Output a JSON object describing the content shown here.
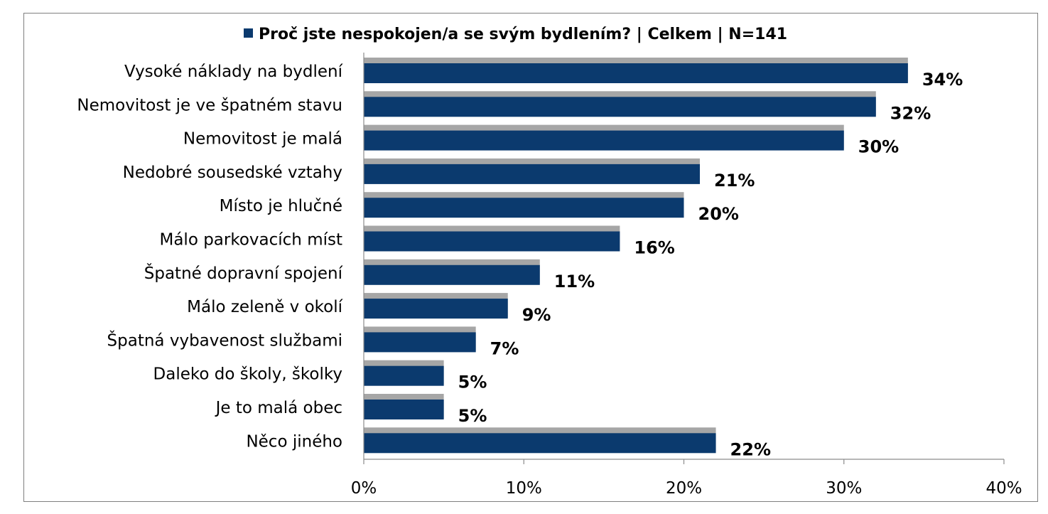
{
  "chart_data": {
    "type": "bar",
    "orientation": "horizontal",
    "title": "",
    "legend": {
      "position": "top",
      "entries": [
        {
          "name": "Proč jste nespokojen/a se svým bydlením? | Celkem | N=141",
          "color": "#0b3a6e"
        }
      ]
    },
    "categories": [
      "Vysoké náklady na bydlení",
      "Nemovitost je ve špatném stavu",
      "Nemovitost je malá",
      "Nedobré sousedské vztahy",
      "Místo je hlučné",
      "Málo parkovacích míst",
      "Špatné dopravní spojení",
      "Málo zeleně v okolí",
      "Špatná vybavenost službami",
      "Daleko do školy, školky",
      "Je to malá obec",
      "Něco jiného"
    ],
    "series": [
      {
        "name": "Proč jste nespokojen/a se svým bydlením? | Celkem | N=141",
        "color": "#0b3a6e",
        "values": [
          34,
          32,
          30,
          21,
          20,
          16,
          11,
          9,
          7,
          5,
          5,
          22
        ],
        "data_labels": [
          "34%",
          "32%",
          "30%",
          "21%",
          "20%",
          "16%",
          "11%",
          "9%",
          "7%",
          "5%",
          "5%",
          "22%"
        ]
      },
      {
        "name": "",
        "color": "#a6a6a6",
        "values": [
          34,
          32,
          30,
          21,
          20,
          16,
          11,
          9,
          7,
          5,
          5,
          22
        ]
      }
    ],
    "xlim": [
      0,
      40
    ],
    "x_ticks": [
      0,
      10,
      20,
      30,
      40
    ],
    "x_tick_labels": [
      "0%",
      "10%",
      "20%",
      "30%",
      "40%"
    ],
    "xlabel": "",
    "ylabel": "",
    "grid": false
  }
}
